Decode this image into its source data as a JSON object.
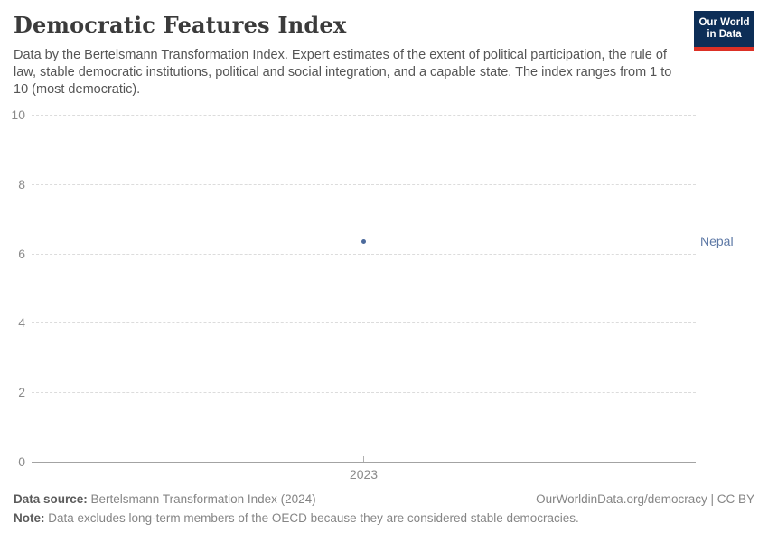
{
  "header": {
    "title": "Democratic Features Index",
    "subtitle": "Data by the Bertelsmann Transformation Index. Expert estimates of the extent of political participation, the rule of law, stable democratic institutions, political and social integration, and a capable state. The index ranges from 1 to 10 (most democratic).",
    "logo": {
      "line1": "Our World",
      "line2": "in Data"
    }
  },
  "chart_data": {
    "type": "scatter",
    "title": "Democratic Features Index",
    "series": [
      {
        "name": "Nepal",
        "x": [
          2023
        ],
        "values": [
          6.35
        ],
        "color": "#4C6A9C"
      }
    ],
    "xticks": [
      "2023"
    ],
    "yticks": [
      0,
      2,
      4,
      6,
      8,
      10
    ],
    "ylim": [
      0,
      10
    ],
    "xlabel": "",
    "ylabel": "",
    "grid": true,
    "gridline_color": "#dcdcdc",
    "axis_label_color": "#8a8a8a",
    "legend_position": "right-of-point"
  },
  "footer": {
    "source_label": "Data source:",
    "source_text": " Bertelsmann Transformation Index (2024)",
    "link_text": "OurWorldinData.org/democracy | CC BY",
    "note_label": "Note:",
    "note_text": " Data excludes long-term members of the OECD because they are considered stable democracies."
  },
  "colors": {
    "accent_blue": "#4C6A9C",
    "logo_navy": "#0d2e57",
    "logo_red": "#dc3025",
    "title_text": "#3b3b3b",
    "subtitle_text": "#555555",
    "footer_text": "#858585"
  }
}
